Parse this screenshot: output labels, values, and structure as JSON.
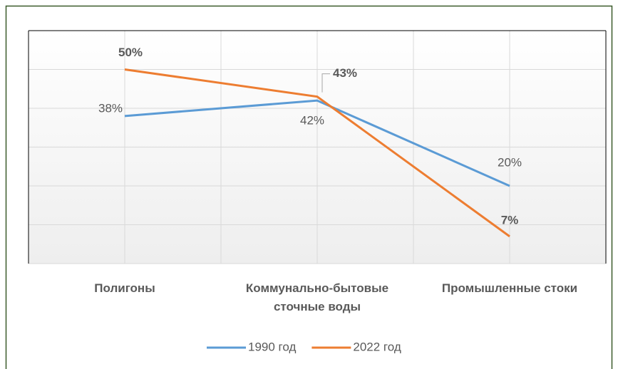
{
  "chart_data": {
    "type": "line",
    "categories": [
      "Полигоны",
      "Коммунально-бытовые сточные воды",
      "Промышленные стоки"
    ],
    "series": [
      {
        "name": "1990 год",
        "color": "#5b9bd5",
        "values": [
          38,
          42,
          20
        ],
        "value_labels": [
          "38%",
          "42%",
          "20%"
        ]
      },
      {
        "name": "2022 год",
        "color": "#ed7d31",
        "values": [
          50,
          43,
          7
        ],
        "value_labels": [
          "50%",
          "43%",
          "7%"
        ]
      }
    ],
    "ylim": [
      0,
      60
    ],
    "yticks": [
      0,
      10,
      20,
      30,
      40,
      50,
      60
    ],
    "grid": true,
    "legend": "bottom"
  }
}
